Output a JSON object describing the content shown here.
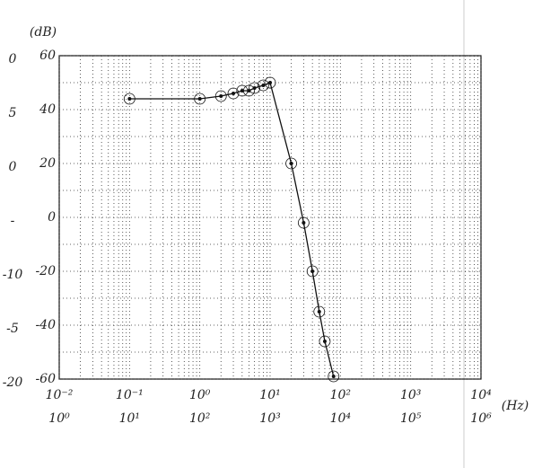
{
  "chart_data": {
    "type": "line",
    "y_unit": "(dB)",
    "x_unit": "(Hz)",
    "x": [
      0.1,
      1,
      2,
      3,
      4,
      5,
      6,
      8,
      10,
      20,
      30,
      40,
      50,
      60,
      80
    ],
    "values": [
      44,
      44,
      45,
      46,
      47,
      47,
      48,
      49,
      50,
      20,
      -2,
      -20,
      -35,
      -46,
      -59
    ],
    "color": "#111111",
    "xlim": [
      0.01,
      10000
    ],
    "ylim": [
      -60,
      60
    ],
    "xscale": "log",
    "xticks": [
      {
        "value": 0.01,
        "label": "10⁻²"
      },
      {
        "value": 0.1,
        "label": "10⁻¹"
      },
      {
        "value": 1,
        "label": "10⁰"
      },
      {
        "value": 10,
        "label": "10¹"
      },
      {
        "value": 100,
        "label": "10²"
      },
      {
        "value": 1000,
        "label": "10³"
      },
      {
        "value": 10000,
        "label": "10⁴"
      }
    ],
    "yticks": [
      60,
      40,
      20,
      0,
      -20,
      -40,
      -60
    ],
    "grid": true,
    "alt_yticks": [
      "0",
      "5",
      "0",
      "-",
      "-10",
      "-5",
      "-20"
    ],
    "alt_xticks": [
      "10⁰",
      "10¹",
      "10²",
      "10³",
      "10⁴",
      "10⁵",
      "10⁶"
    ]
  }
}
